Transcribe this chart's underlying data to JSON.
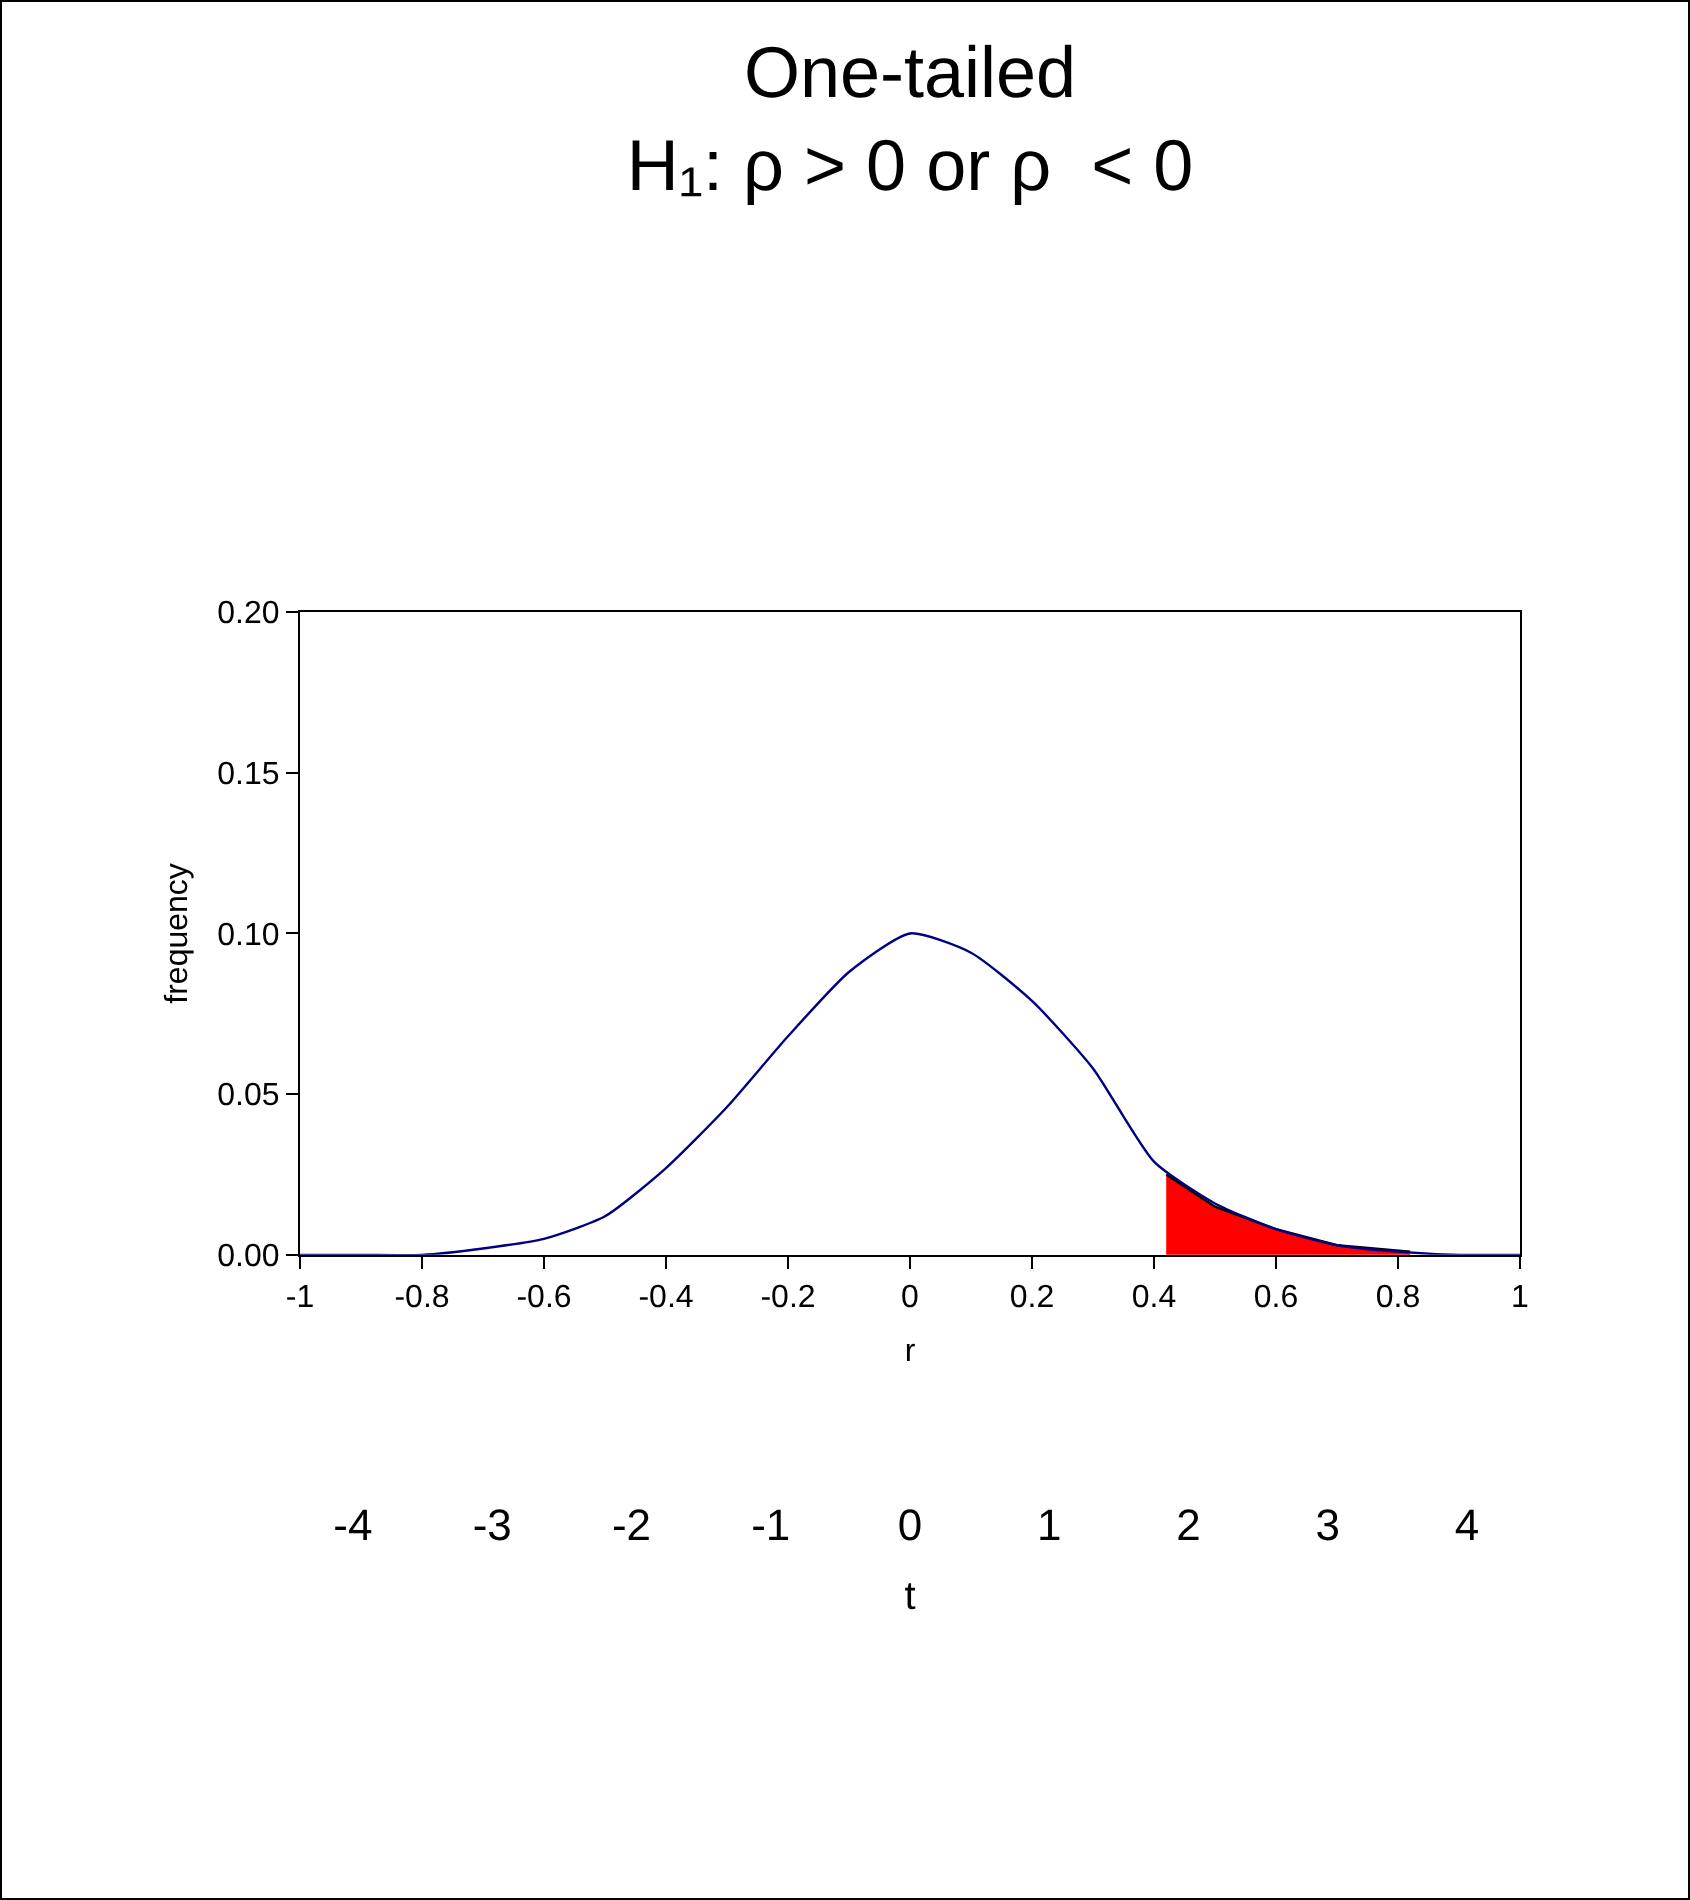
{
  "chart_data": {
    "type": "line",
    "title": "One-tailed",
    "subtitle": "H₁: ρ > 0 or ρ  < 0",
    "xlabel": "r",
    "ylabel": "frequency",
    "x2label": "t",
    "xlim": [
      -1,
      1
    ],
    "xticks": [
      -1,
      -0.8,
      -0.6,
      -0.4,
      -0.2,
      0,
      0.2,
      0.4,
      0.6,
      0.8,
      1
    ],
    "ylim": [
      0,
      0.2
    ],
    "yticks": [
      {
        "value": 0,
        "label": "0.00"
      },
      {
        "value": 0.05,
        "label": "0.05"
      },
      {
        "value": 0.1,
        "label": "0.10"
      },
      {
        "value": 0.15,
        "label": "0.15"
      },
      {
        "value": 0.2,
        "label": "0.20"
      }
    ],
    "x2lim": [
      -4.38,
      4.38
    ],
    "x2ticks": [
      -4,
      -3,
      -2,
      -1,
      0,
      1,
      2,
      3,
      4
    ],
    "marker": "none",
    "line_style": "solid",
    "series": [
      {
        "color": "#000080",
        "x": [
          -1,
          -0.9,
          -0.8,
          -0.7,
          -0.6,
          -0.5,
          -0.4,
          -0.3,
          -0.2,
          -0.1,
          0,
          0.1,
          0.2,
          0.3,
          0.4,
          0.5,
          0.6,
          0.7,
          0.8,
          0.9,
          1
        ],
        "values": [
          0,
          0,
          0,
          0.002,
          0.005,
          0.012,
          0.027,
          0.046,
          0.068,
          0.088,
          0.1,
          0.094,
          0.079,
          0.058,
          0.029,
          0.016,
          0.008,
          0.003,
          0.001,
          0,
          0
        ]
      },
      {
        "type": "area",
        "color": "#ff0000",
        "x": [
          0.42,
          0.5,
          0.6,
          0.7,
          0.82
        ],
        "values": [
          0.025,
          0.015,
          0.008,
          0.003,
          0.001
        ]
      }
    ]
  }
}
